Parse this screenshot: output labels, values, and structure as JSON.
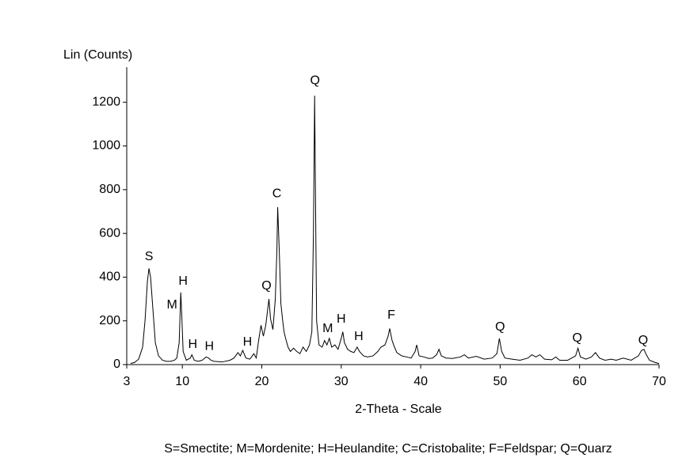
{
  "chart_data": {
    "type": "line",
    "y_label": "Lin (Counts)",
    "x_label": "2-Theta - Scale",
    "note": "S=Smectite; M=Mordenite; H=Heulandite; C=Cristobalite; F=Feldspar; Q=Quarz",
    "xlim": [
      3,
      70
    ],
    "ylim": [
      0,
      1360
    ],
    "xticks": [
      3,
      10,
      20,
      30,
      40,
      50,
      60,
      70
    ],
    "yticks": [
      0,
      200,
      400,
      600,
      800,
      1000,
      1200
    ],
    "grid": false,
    "x": [
      3.5,
      4,
      4.5,
      5,
      5.3,
      5.6,
      5.8,
      6.0,
      6.3,
      6.6,
      7,
      7.5,
      8,
      8.5,
      9,
      9.3,
      9.6,
      9.8,
      9.9,
      10.1,
      10.5,
      11,
      11.2,
      11.5,
      12,
      12.5,
      13,
      13.3,
      13.6,
      14,
      15,
      16,
      16.5,
      17,
      17.3,
      17.6,
      18,
      18.5,
      19,
      19.3,
      19.6,
      19.9,
      20.2,
      20.5,
      20.9,
      21.1,
      21.4,
      21.7,
      21.9,
      22.0,
      22.2,
      22.4,
      22.6,
      22.8,
      23,
      23.3,
      23.6,
      24,
      24.4,
      24.8,
      25.2,
      25.6,
      26,
      26.3,
      26.5,
      26.65,
      26.8,
      26.9,
      27.2,
      27.6,
      27.9,
      28.2,
      28.5,
      28.8,
      29.2,
      29.6,
      30.0,
      30.2,
      30.4,
      30.8,
      31.2,
      31.6,
      32,
      32.3,
      32.8,
      33.3,
      34,
      34.6,
      35,
      35.5,
      35.9,
      36.1,
      36.4,
      36.7,
      37,
      37.6,
      38.2,
      38.8,
      39.3,
      39.5,
      39.8,
      40.4,
      41,
      41.5,
      42,
      42.3,
      42.6,
      43.2,
      44,
      45,
      45.5,
      46,
      47,
      48,
      49,
      49.6,
      49.9,
      50.2,
      50.6,
      51.5,
      52.5,
      53.5,
      54,
      54.5,
      55,
      55.6,
      56.5,
      57,
      57.5,
      58.5,
      59.5,
      59.8,
      60.1,
      60.8,
      61.5,
      62,
      62.5,
      63.2,
      64,
      64.6,
      65.5,
      66.5,
      67.4,
      67.8,
      68.1,
      68.4,
      68.8,
      69.5,
      70
    ],
    "series": [
      {
        "color": "#000000",
        "values": [
          5,
          10,
          25,
          80,
          200,
          380,
          440,
          400,
          250,
          100,
          40,
          20,
          15,
          15,
          20,
          30,
          100,
          330,
          250,
          60,
          20,
          30,
          45,
          20,
          15,
          20,
          35,
          30,
          20,
          15,
          12,
          20,
          30,
          55,
          40,
          65,
          30,
          25,
          50,
          30,
          110,
          180,
          130,
          180,
          300,
          210,
          160,
          300,
          520,
          720,
          520,
          280,
          210,
          150,
          120,
          80,
          60,
          75,
          60,
          50,
          80,
          60,
          90,
          150,
          600,
          1230,
          600,
          200,
          90,
          80,
          110,
          90,
          120,
          80,
          90,
          70,
          120,
          150,
          100,
          70,
          60,
          55,
          80,
          60,
          40,
          35,
          40,
          60,
          80,
          90,
          130,
          165,
          110,
          80,
          55,
          40,
          35,
          30,
          60,
          90,
          40,
          35,
          28,
          30,
          45,
          70,
          40,
          30,
          28,
          35,
          45,
          30,
          38,
          25,
          30,
          50,
          120,
          60,
          30,
          25,
          20,
          30,
          45,
          35,
          45,
          25,
          22,
          35,
          20,
          20,
          40,
          75,
          35,
          25,
          35,
          55,
          30,
          20,
          25,
          20,
          30,
          20,
          40,
          65,
          70,
          45,
          20,
          10,
          5
        ]
      }
    ],
    "annotations": [
      {
        "text": "S",
        "x": 5.8,
        "y": 493
      },
      {
        "text": "M",
        "x": 8.7,
        "y": 272
      },
      {
        "text": "H",
        "x": 10.1,
        "y": 381
      },
      {
        "text": "H",
        "x": 11.3,
        "y": 91
      },
      {
        "text": "H",
        "x": 13.4,
        "y": 83
      },
      {
        "text": "H",
        "x": 18.2,
        "y": 102
      },
      {
        "text": "Q",
        "x": 20.6,
        "y": 359
      },
      {
        "text": "C",
        "x": 21.9,
        "y": 780
      },
      {
        "text": "Q",
        "x": 26.7,
        "y": 1298
      },
      {
        "text": "M",
        "x": 28.3,
        "y": 163
      },
      {
        "text": "H",
        "x": 30.0,
        "y": 207
      },
      {
        "text": "H",
        "x": 32.2,
        "y": 127
      },
      {
        "text": "F",
        "x": 36.3,
        "y": 225
      },
      {
        "text": "Q",
        "x": 50.0,
        "y": 170
      },
      {
        "text": "Q",
        "x": 59.7,
        "y": 120
      },
      {
        "text": "Q",
        "x": 68.0,
        "y": 109
      }
    ]
  }
}
